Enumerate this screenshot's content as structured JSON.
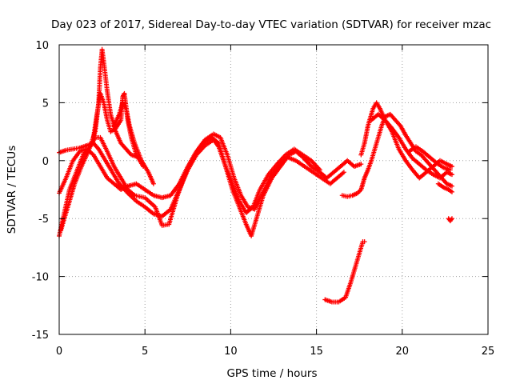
{
  "chart_data": {
    "type": "scatter",
    "title": "Day 023 of 2017, Sidereal Day-to-day VTEC variation (SDTVAR) for receiver mzac",
    "xlabel": "GPS time / hours",
    "ylabel": "SDTVAR / TECUs",
    "xlim": [
      0,
      25
    ],
    "ylim": [
      -15,
      10
    ],
    "xticks": [
      0,
      5,
      10,
      15,
      20,
      25
    ],
    "yticks": [
      -15,
      -10,
      -5,
      0,
      5,
      10
    ],
    "grid": true,
    "marker": "+",
    "color": "#ff0000",
    "series": [
      {
        "name": "track-1",
        "points": [
          [
            0.0,
            -6.5
          ],
          [
            0.3,
            -4.5
          ],
          [
            0.6,
            -2.5
          ],
          [
            1.0,
            -1.0
          ],
          [
            1.4,
            0.5
          ],
          [
            1.8,
            1.2
          ],
          [
            2.1,
            2.0
          ],
          [
            2.4,
            2.0
          ],
          [
            2.8,
            0.8
          ],
          [
            3.2,
            -0.5
          ],
          [
            3.6,
            -1.5
          ],
          [
            4.0,
            -2.5
          ],
          [
            4.4,
            -3.0
          ],
          [
            5.0,
            -3.2
          ],
          [
            5.6,
            -4.0
          ],
          [
            6.0,
            -5.6
          ],
          [
            6.4,
            -5.5
          ],
          [
            6.9,
            -3.0
          ],
          [
            7.4,
            -1.0
          ],
          [
            7.9,
            0.5
          ],
          [
            8.4,
            1.5
          ],
          [
            8.9,
            2.0
          ],
          [
            9.3,
            1.5
          ],
          [
            9.7,
            -0.5
          ],
          [
            10.1,
            -2.5
          ],
          [
            10.5,
            -4.0
          ],
          [
            10.9,
            -5.5
          ],
          [
            11.2,
            -6.5
          ],
          [
            11.5,
            -5.0
          ],
          [
            11.9,
            -3.0
          ],
          [
            12.4,
            -1.5
          ],
          [
            12.9,
            -0.5
          ],
          [
            13.4,
            0.5
          ],
          [
            13.8,
            0.8
          ],
          [
            14.2,
            0.3
          ],
          [
            14.7,
            -0.5
          ],
          [
            15.2,
            -1.0
          ],
          [
            15.6,
            -1.5
          ],
          [
            16.0,
            -1.0
          ],
          [
            16.4,
            -0.5
          ],
          [
            16.8,
            0.0
          ],
          [
            17.2,
            -0.5
          ],
          [
            17.6,
            -0.3
          ]
        ]
      },
      {
        "name": "track-2",
        "points": [
          [
            0.0,
            -2.8
          ],
          [
            0.4,
            -1.5
          ],
          [
            0.8,
            0.0
          ],
          [
            1.2,
            0.8
          ],
          [
            1.6,
            1.0
          ],
          [
            2.0,
            0.5
          ],
          [
            2.4,
            -0.5
          ],
          [
            2.8,
            -1.5
          ],
          [
            3.2,
            -2.0
          ],
          [
            3.6,
            -2.5
          ],
          [
            4.0,
            -2.2
          ],
          [
            4.5,
            -2.0
          ],
          [
            5.0,
            -2.5
          ],
          [
            5.5,
            -3.0
          ],
          [
            6.0,
            -3.2
          ],
          [
            6.5,
            -3.0
          ],
          [
            7.0,
            -2.0
          ],
          [
            7.5,
            -0.5
          ],
          [
            8.0,
            0.8
          ],
          [
            8.5,
            1.8
          ],
          [
            9.0,
            2.3
          ],
          [
            9.4,
            2.0
          ],
          [
            9.8,
            0.5
          ],
          [
            10.2,
            -1.5
          ],
          [
            10.6,
            -3.0
          ],
          [
            11.0,
            -4.0
          ],
          [
            11.4,
            -4.2
          ],
          [
            11.8,
            -3.0
          ],
          [
            12.3,
            -1.5
          ],
          [
            12.8,
            -0.5
          ],
          [
            13.3,
            0.3
          ],
          [
            13.8,
            0.0
          ],
          [
            14.3,
            -0.5
          ],
          [
            14.8,
            -1.0
          ],
          [
            15.3,
            -1.5
          ],
          [
            15.8,
            -2.0
          ],
          [
            16.2,
            -1.5
          ],
          [
            16.6,
            -1.0
          ]
        ]
      },
      {
        "name": "track-3",
        "points": [
          [
            0.0,
            0.7
          ],
          [
            0.4,
            0.9
          ],
          [
            0.8,
            1.0
          ],
          [
            1.2,
            1.1
          ],
          [
            1.6,
            1.3
          ],
          [
            2.0,
            1.5
          ],
          [
            2.3,
            1.0
          ],
          [
            2.7,
            0.0
          ],
          [
            3.1,
            -1.0
          ],
          [
            3.5,
            -2.0
          ],
          [
            4.0,
            -2.8
          ],
          [
            4.5,
            -3.5
          ],
          [
            5.0,
            -4.0
          ],
          [
            5.5,
            -4.6
          ],
          [
            6.0,
            -4.8
          ],
          [
            6.5,
            -4.2
          ],
          [
            7.0,
            -2.5
          ],
          [
            7.5,
            -0.8
          ],
          [
            8.0,
            0.5
          ],
          [
            8.5,
            1.3
          ],
          [
            9.0,
            1.8
          ],
          [
            9.3,
            1.2
          ],
          [
            9.7,
            -0.5
          ],
          [
            10.1,
            -2.0
          ],
          [
            10.5,
            -3.5
          ],
          [
            10.9,
            -4.5
          ],
          [
            11.3,
            -4.0
          ],
          [
            11.7,
            -2.5
          ],
          [
            12.2,
            -1.2
          ],
          [
            12.7,
            -0.3
          ],
          [
            13.2,
            0.5
          ],
          [
            13.7,
            1.0
          ],
          [
            14.2,
            0.5
          ],
          [
            14.7,
            0.0
          ],
          [
            15.2,
            -0.8
          ]
        ]
      },
      {
        "name": "track-4",
        "points": [
          [
            0.1,
            -6.0
          ],
          [
            0.3,
            -5.0
          ],
          [
            0.6,
            -3.5
          ],
          [
            0.9,
            -2.0
          ],
          [
            1.3,
            -0.5
          ],
          [
            1.7,
            0.8
          ],
          [
            2.1,
            2.5
          ],
          [
            2.3,
            5.0
          ],
          [
            2.4,
            8.0
          ],
          [
            2.5,
            9.6
          ],
          [
            2.6,
            8.5
          ],
          [
            2.8,
            6.0
          ],
          [
            3.0,
            4.0
          ],
          [
            3.3,
            2.5
          ],
          [
            3.6,
            1.5
          ],
          [
            3.9,
            1.0
          ],
          [
            4.2,
            0.5
          ],
          [
            4.6,
            0.3
          ]
        ]
      },
      {
        "name": "track-5",
        "points": [
          [
            2.0,
            2.0
          ],
          [
            2.2,
            4.0
          ],
          [
            2.4,
            5.8
          ],
          [
            2.6,
            5.0
          ],
          [
            2.8,
            3.5
          ],
          [
            3.0,
            2.5
          ],
          [
            3.3,
            2.8
          ],
          [
            3.6,
            3.5
          ],
          [
            3.7,
            5.5
          ],
          [
            3.8,
            5.8
          ],
          [
            4.0,
            3.5
          ],
          [
            4.2,
            2.0
          ],
          [
            4.5,
            0.5
          ],
          [
            4.9,
            -0.5
          ]
        ]
      },
      {
        "name": "track-6",
        "points": [
          [
            3.2,
            3.0
          ],
          [
            3.5,
            4.0
          ],
          [
            3.7,
            5.0
          ],
          [
            3.9,
            4.5
          ],
          [
            4.1,
            3.0
          ],
          [
            4.4,
            1.5
          ],
          [
            4.8,
            0.0
          ],
          [
            5.2,
            -1.0
          ],
          [
            5.5,
            -2.0
          ]
        ]
      },
      {
        "name": "track-7",
        "points": [
          [
            15.5,
            -12.0
          ],
          [
            15.9,
            -12.2
          ],
          [
            16.3,
            -12.2
          ],
          [
            16.7,
            -11.8
          ],
          [
            17.0,
            -10.5
          ],
          [
            17.3,
            -9.0
          ],
          [
            17.5,
            -8.0
          ],
          [
            17.7,
            -7.0
          ],
          [
            17.8,
            -7.0
          ]
        ]
      },
      {
        "name": "track-8",
        "points": [
          [
            16.5,
            -3.0
          ],
          [
            16.8,
            -3.1
          ],
          [
            17.1,
            -3.0
          ],
          [
            17.4,
            -2.8
          ],
          [
            17.6,
            -2.5
          ],
          [
            17.7,
            -2.0
          ],
          [
            17.8,
            -1.5
          ],
          [
            18.0,
            -0.8
          ],
          [
            18.2,
            0.0
          ],
          [
            18.4,
            1.0
          ],
          [
            18.6,
            2.0
          ],
          [
            18.8,
            3.0
          ],
          [
            19.0,
            3.8
          ],
          [
            19.3,
            4.0
          ],
          [
            19.6,
            3.5
          ],
          [
            19.9,
            3.0
          ],
          [
            20.2,
            2.2
          ],
          [
            20.5,
            1.5
          ],
          [
            20.8,
            0.8
          ],
          [
            21.1,
            0.5
          ],
          [
            21.4,
            0.0
          ],
          [
            21.7,
            -0.5
          ],
          [
            22.0,
            -1.0
          ],
          [
            22.3,
            -1.5
          ],
          [
            22.6,
            -2.0
          ],
          [
            22.9,
            -2.2
          ]
        ]
      },
      {
        "name": "track-9",
        "points": [
          [
            17.6,
            0.5
          ],
          [
            17.8,
            1.5
          ],
          [
            18.0,
            3.0
          ],
          [
            18.3,
            4.5
          ],
          [
            18.5,
            5.0
          ],
          [
            18.7,
            4.5
          ],
          [
            19.0,
            3.5
          ],
          [
            19.4,
            2.5
          ],
          [
            19.8,
            1.0
          ],
          [
            20.2,
            0.0
          ],
          [
            20.6,
            -0.8
          ],
          [
            21.0,
            -1.5
          ],
          [
            21.4,
            -1.0
          ],
          [
            21.8,
            -0.5
          ],
          [
            22.2,
            0.0
          ],
          [
            22.6,
            -0.3
          ],
          [
            22.9,
            -0.5
          ]
        ]
      },
      {
        "name": "track-10",
        "points": [
          [
            18.2,
            3.5
          ],
          [
            18.6,
            4.0
          ],
          [
            19.0,
            3.5
          ],
          [
            19.4,
            2.8
          ],
          [
            19.8,
            2.0
          ],
          [
            20.2,
            1.0
          ],
          [
            20.6,
            0.2
          ],
          [
            21.0,
            -0.3
          ],
          [
            21.4,
            -0.8
          ],
          [
            21.8,
            -1.2
          ],
          [
            22.2,
            -1.5
          ],
          [
            22.6,
            -1.0
          ],
          [
            22.9,
            -1.2
          ]
        ]
      },
      {
        "name": "track-11",
        "points": [
          [
            22.1,
            -2.0
          ],
          [
            22.4,
            -2.3
          ],
          [
            22.7,
            -2.5
          ],
          [
            22.9,
            -2.7
          ]
        ]
      },
      {
        "name": "track-12",
        "points": [
          [
            22.7,
            -5.0
          ],
          [
            22.8,
            -5.2
          ],
          [
            22.9,
            -5.0
          ]
        ]
      },
      {
        "name": "track-13",
        "points": [
          [
            20.4,
            0.8
          ],
          [
            20.8,
            1.2
          ],
          [
            21.2,
            0.8
          ],
          [
            21.6,
            0.3
          ],
          [
            22.0,
            -0.2
          ],
          [
            22.4,
            -0.6
          ],
          [
            22.8,
            -0.8
          ]
        ]
      }
    ]
  }
}
